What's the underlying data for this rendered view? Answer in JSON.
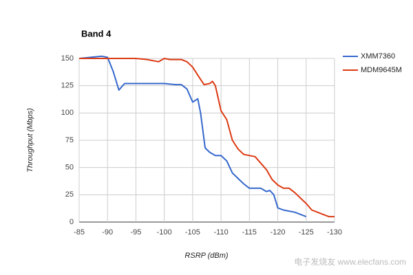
{
  "chart_data": {
    "type": "line",
    "title": "Band 4",
    "x_label": "RSRP (dBm)",
    "y_label": "Throughput (Mbps)",
    "xlim": [
      -85,
      -130
    ],
    "xticks": [
      -85,
      -90,
      -95,
      -100,
      -105,
      -110,
      -115,
      -120,
      -125,
      -130
    ],
    "ylim": [
      0,
      150
    ],
    "yticks": [
      0,
      25,
      50,
      75,
      100,
      125,
      150
    ],
    "grid": true,
    "legend": "right",
    "watermark": "电子发烧友 www.elecfans.com",
    "series": [
      {
        "name": "XMM7360",
        "color": "#3366cc",
        "x": [
          -85,
          -87,
          -89,
          -90,
          -91,
          -92,
          -93,
          -94,
          -95,
          -100,
          -102,
          -103,
          -104,
          -105,
          -105.9,
          -106.4,
          -107.2,
          -108,
          -109,
          -110,
          -111,
          -112,
          -113,
          -114,
          -115,
          -116,
          -117,
          -118,
          -118.6,
          -119.3,
          -120,
          -121,
          -123,
          -125
        ],
        "values": [
          150,
          151,
          152,
          151,
          138,
          121,
          127,
          127,
          127,
          127,
          126,
          126,
          122,
          110,
          113,
          100,
          68,
          64,
          61,
          61,
          56,
          45,
          40,
          35,
          31,
          31,
          31,
          28,
          29,
          25,
          13,
          11,
          9,
          5
        ]
      },
      {
        "name": "MDM9645M",
        "color": "#dc3912",
        "x": [
          -85,
          -90,
          -95,
          -97,
          -99,
          -100,
          -101,
          -103,
          -104,
          -105,
          -106,
          -107,
          -108,
          -108.5,
          -109,
          -110,
          -111,
          -112,
          -113,
          -114,
          -115,
          -116,
          -117,
          -118,
          -119,
          -120,
          -121,
          -122,
          -123,
          -124,
          -125,
          -126,
          -127,
          -128,
          -129,
          -130
        ],
        "values": [
          150,
          150,
          150,
          149,
          147,
          150,
          149,
          149,
          147,
          142,
          134,
          126,
          127,
          129,
          125,
          102,
          94,
          75,
          67,
          62,
          61,
          60,
          54,
          48,
          39,
          34,
          31,
          31,
          27,
          22,
          17,
          11,
          9,
          7,
          5,
          5
        ]
      }
    ]
  }
}
